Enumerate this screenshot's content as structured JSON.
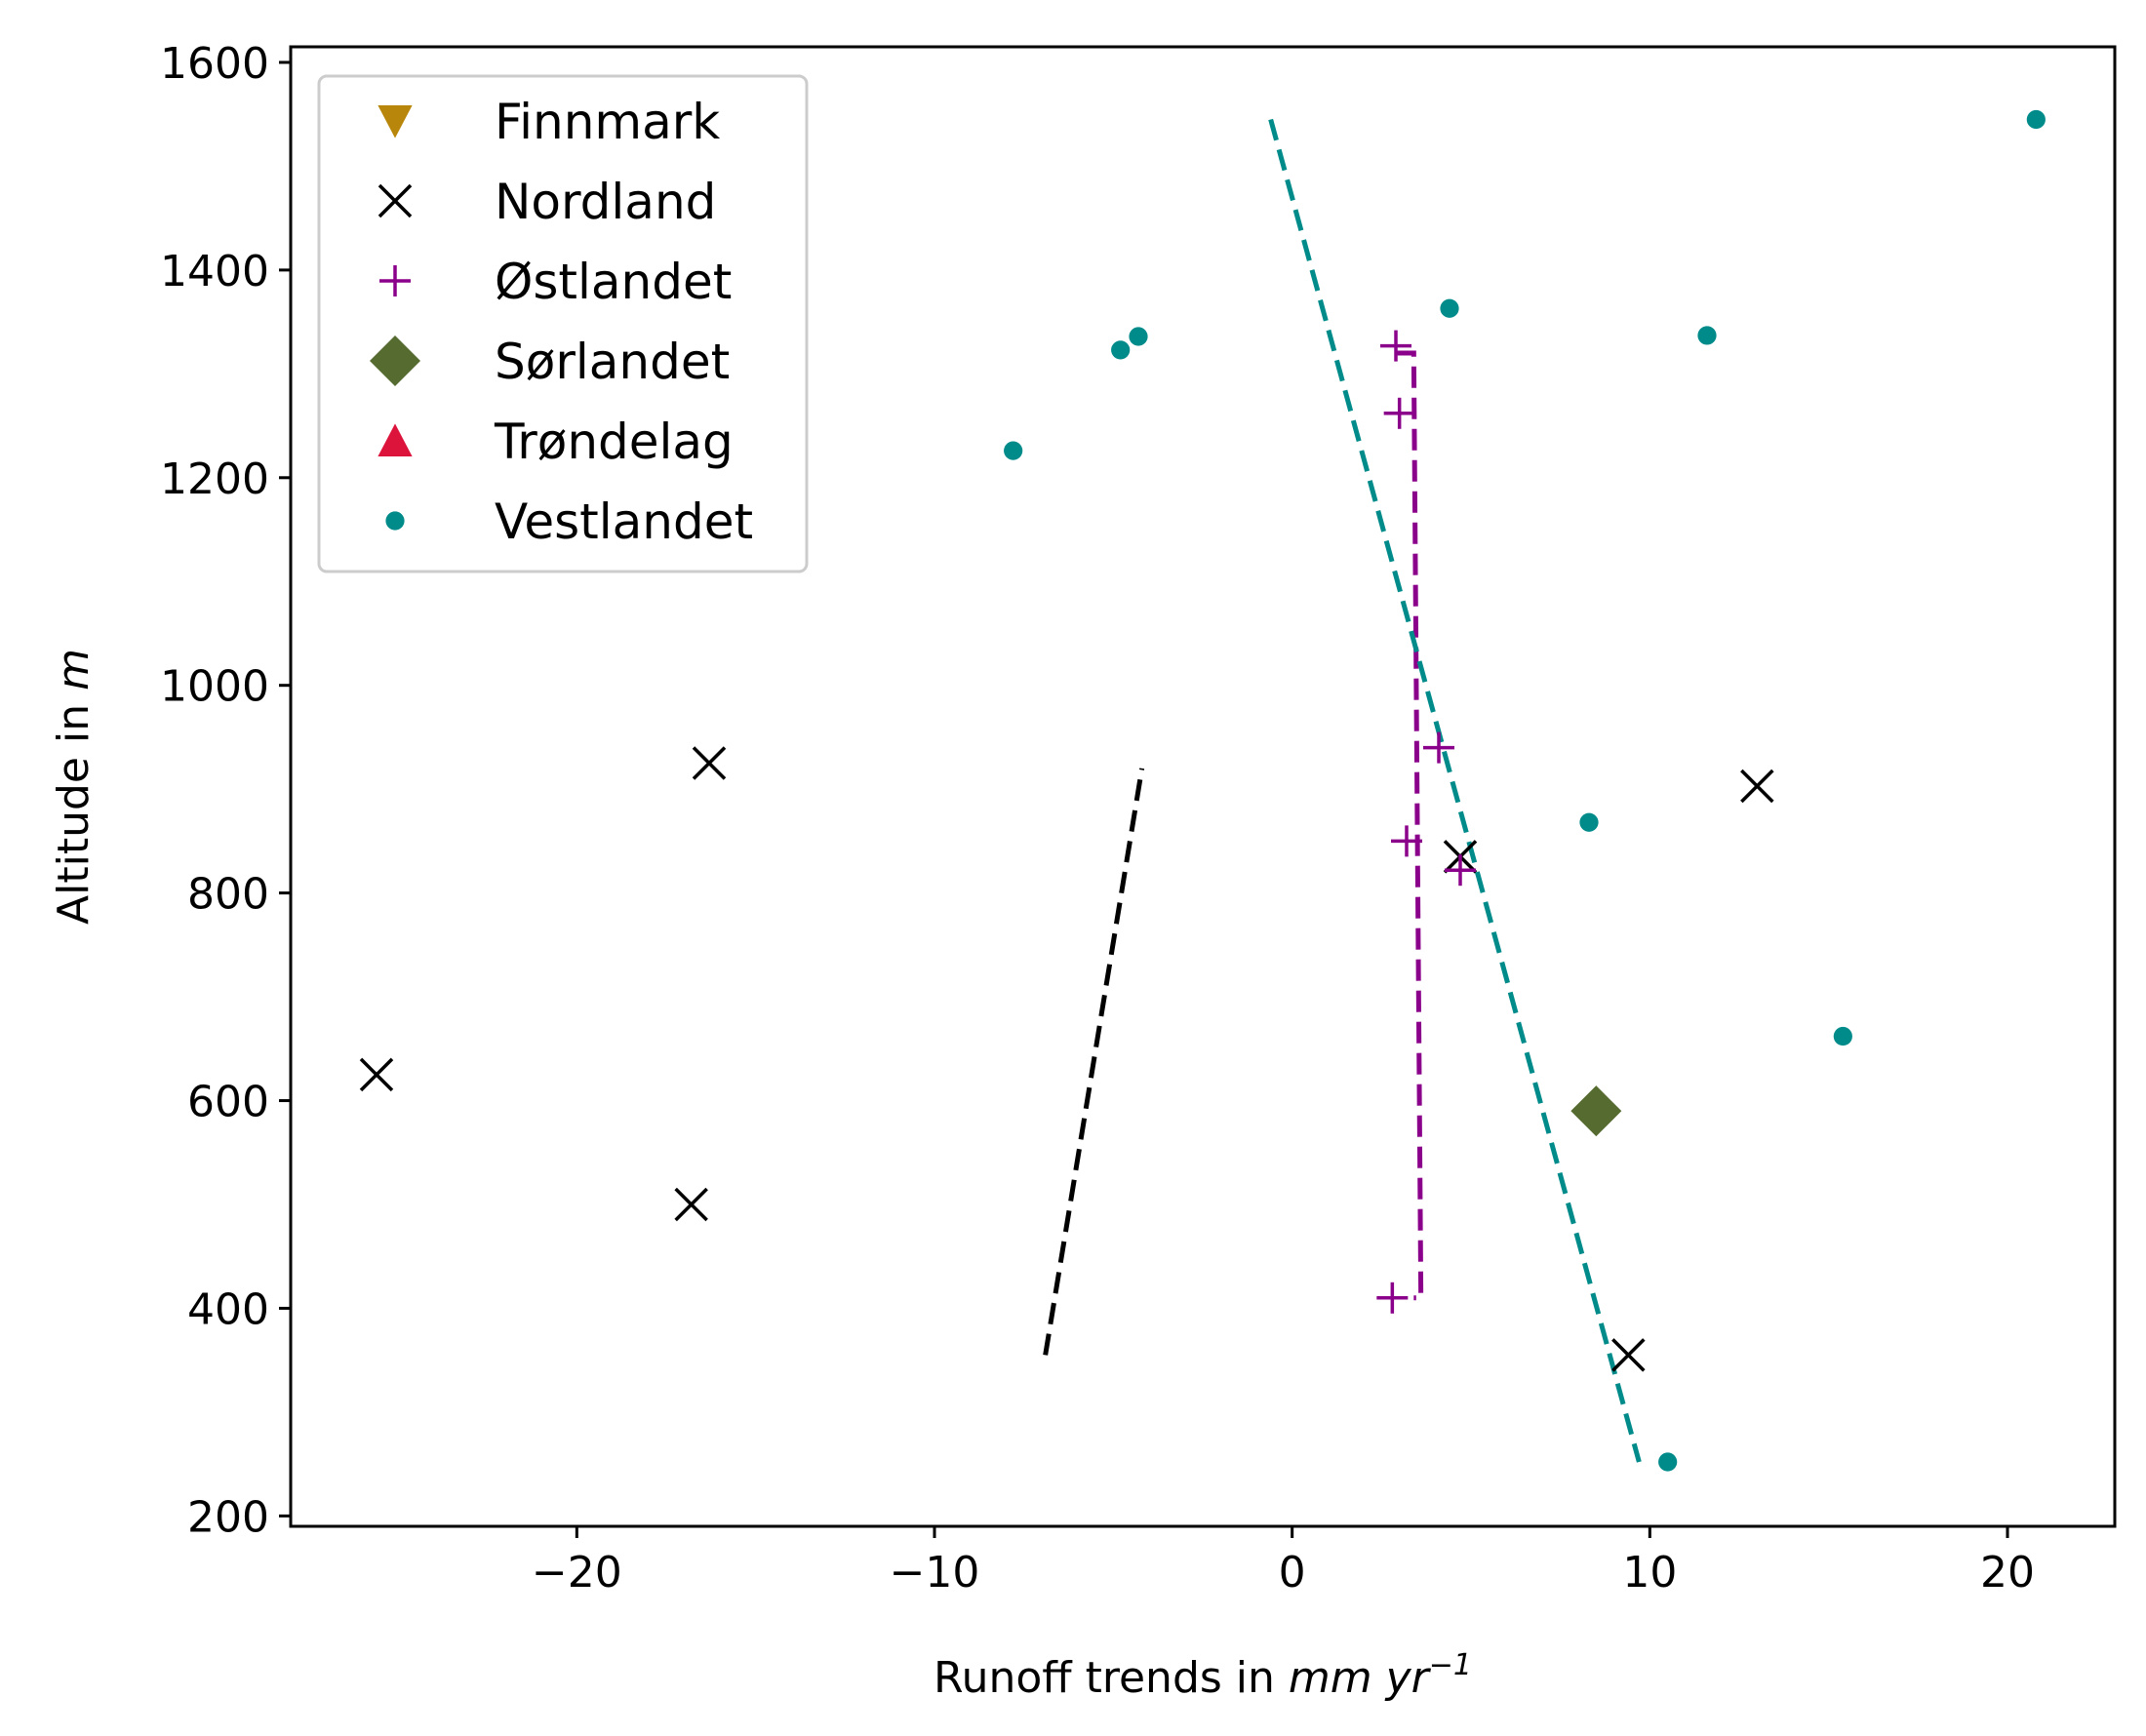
{
  "chart_data": {
    "type": "scatter",
    "xlabel": "Runoff trends in",
    "xlabel_unit": "mm yr",
    "xlabel_exponent": "−1",
    "ylabel": "Altitude in",
    "ylabel_unit": "m",
    "xlim": [
      -28,
      23
    ],
    "ylim": [
      190,
      1615
    ],
    "xticks": [
      -20,
      -10,
      0,
      10,
      20
    ],
    "xtick_labels": [
      "−20",
      "−10",
      "0",
      "10",
      "20"
    ],
    "yticks": [
      200,
      400,
      600,
      800,
      1000,
      1200,
      1400,
      1600
    ],
    "ytick_labels": [
      "200",
      "400",
      "600",
      "800",
      "1000",
      "1200",
      "1400",
      "1600"
    ],
    "legend_position": "upper-left",
    "series": [
      {
        "name": "Finnmark",
        "marker": "triangle-down",
        "color": "#b8860b",
        "points": []
      },
      {
        "name": "Nordland",
        "marker": "x",
        "color": "#000000",
        "points": [
          [
            -25.6,
            625
          ],
          [
            -16.3,
            925
          ],
          [
            -16.8,
            500
          ],
          [
            4.7,
            835
          ],
          [
            13.0,
            903
          ],
          [
            9.4,
            355
          ]
        ]
      },
      {
        "name": "Østlandet",
        "marker": "plus",
        "color": "#8b008b",
        "points": [
          [
            2.9,
            1327
          ],
          [
            3.0,
            1262
          ],
          [
            4.1,
            940
          ],
          [
            3.2,
            850
          ],
          [
            4.7,
            822
          ],
          [
            2.8,
            410
          ]
        ]
      },
      {
        "name": "Sørlandet",
        "marker": "diamond",
        "color": "#556b2f",
        "points": [
          [
            8.5,
            590
          ]
        ]
      },
      {
        "name": "Trøndelag",
        "marker": "triangle-up",
        "color": "#dc143c",
        "points": []
      },
      {
        "name": "Vestlandet",
        "marker": "dot",
        "color": "#008b8b",
        "points": [
          [
            -7.8,
            1226
          ],
          [
            -4.8,
            1323
          ],
          [
            -4.3,
            1336
          ],
          [
            4.4,
            1363
          ],
          [
            11.6,
            1337
          ],
          [
            8.3,
            868
          ],
          [
            15.4,
            662
          ],
          [
            20.8,
            1545
          ],
          [
            10.5,
            252
          ]
        ]
      }
    ],
    "trend_lines": [
      {
        "color": "#000000",
        "points": [
          [
            -6.9,
            355
          ],
          [
            -4.2,
            920
          ]
        ]
      },
      {
        "color": "#8b008b",
        "points": [
          [
            2.9,
            1320
          ],
          [
            3.4,
            1320
          ],
          [
            3.6,
            410
          ],
          [
            3.4,
            410
          ]
        ]
      },
      {
        "color": "#008b8b",
        "points": [
          [
            -0.6,
            1545
          ],
          [
            9.7,
            252
          ]
        ]
      }
    ]
  }
}
